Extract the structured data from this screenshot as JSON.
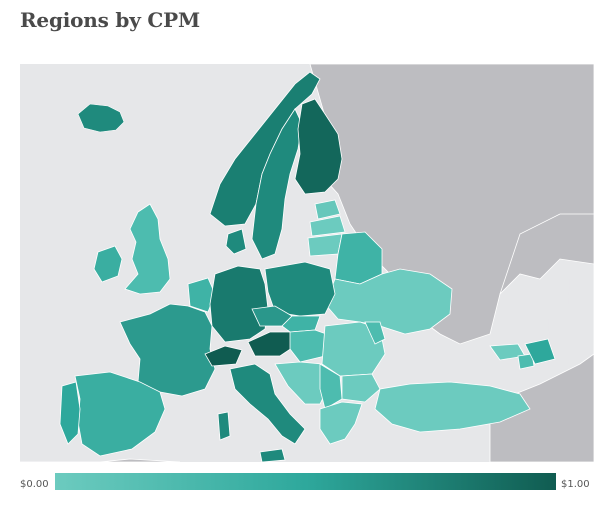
{
  "title": "Regions by CPM",
  "legend": {
    "min_label": "$0.00",
    "max_label": "$1.00",
    "color_low": "#6ccbbf",
    "color_mid": "#2ea89c",
    "color_high": "#105c51"
  },
  "colors": {
    "sea": "#e6e7e9",
    "no_data": "#bdbdc1",
    "border": "#ffffff"
  }
}
